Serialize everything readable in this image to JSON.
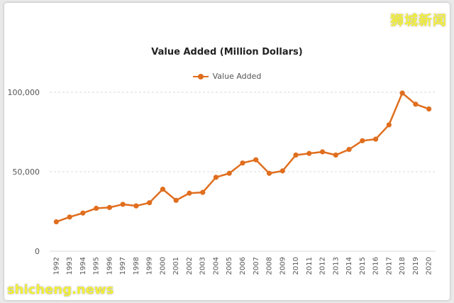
{
  "chart_data": {
    "type": "line",
    "title": "Value Added (Million Dollars)",
    "xlabel": "",
    "ylabel": "",
    "legend_position": "top-center",
    "grid": true,
    "ylim": [
      0,
      100000
    ],
    "yticks": [
      0,
      50000,
      100000
    ],
    "ytick_labels": [
      "0",
      "50,000",
      "100,000"
    ],
    "categories": [
      "1992",
      "1993",
      "1994",
      "1995",
      "1996",
      "1997",
      "1998",
      "1999",
      "2000",
      "2001",
      "2002",
      "2003",
      "2004",
      "2005",
      "2006",
      "2007",
      "2008",
      "2009",
      "2010",
      "2011",
      "2012",
      "2013",
      "2014",
      "2015",
      "2016",
      "2017",
      "2018",
      "2019",
      "2020"
    ],
    "series": [
      {
        "name": "Value Added",
        "color": "#e06e1e",
        "values": [
          18500,
          21500,
          24000,
          27000,
          27500,
          29500,
          28500,
          30500,
          39000,
          32000,
          36500,
          37000,
          46500,
          49000,
          55500,
          57500,
          49000,
          50500,
          60500,
          61500,
          62500,
          60500,
          64000,
          69500,
          70500,
          79500,
          99500,
          92500,
          89500
        ]
      }
    ]
  },
  "watermarks": {
    "top_right": "狮城新闻",
    "bottom_left": "shicheng.news"
  }
}
